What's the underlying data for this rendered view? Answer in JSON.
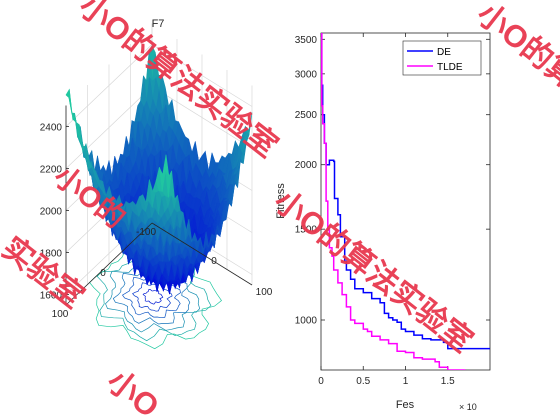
{
  "colors": {
    "de": "#0000ff",
    "tlde": "#ff00ff",
    "surface_high": "#20c8a0",
    "surface_low": "#0000dd",
    "contour": "#1030c0",
    "watermark": "#e8384f",
    "axis": "#262626"
  },
  "watermark": {
    "text1": "小O的算法实验室",
    "text2": "小O的算",
    "text3": "小O的算法实验室",
    "text4": "实验室",
    "text5": "小O的",
    "text6": "小O"
  },
  "chart_data": [
    {
      "type": "surface",
      "title": "F7",
      "xlabel": "",
      "ylabel": "",
      "zlabel": "",
      "xlim": [
        -100,
        100
      ],
      "ylim": [
        -100,
        100
      ],
      "zlim": [
        1550,
        2500
      ],
      "x_ticks": [
        0,
        100
      ],
      "y_ticks": [
        -100,
        0,
        100
      ],
      "z_ticks": [
        1600,
        1800,
        2000,
        2200,
        2400
      ],
      "contours_on_floor": true,
      "colormap": "winter"
    },
    {
      "type": "line",
      "title": "",
      "xlabel": "Fes",
      "ylabel": "Fitness",
      "x_exponent_label": "× 10",
      "y_scale": "log",
      "xlim": [
        0,
        2
      ],
      "ylim": [
        800,
        3600
      ],
      "x_ticks": [
        "0",
        "0.5",
        "1",
        "1.5"
      ],
      "y_ticks": [
        "1000",
        "1500",
        "2000",
        "2500",
        "3000",
        "3500"
      ],
      "legend_position": "top-right",
      "series": [
        {
          "name": "DE",
          "x": [
            0,
            0.01,
            0.02,
            0.04,
            0.06,
            0.08,
            0.1,
            0.13,
            0.15,
            0.16,
            0.2,
            0.23,
            0.28,
            0.3,
            0.35,
            0.4,
            0.45,
            0.5,
            0.6,
            0.7,
            0.75,
            0.8,
            0.85,
            0.9,
            0.95,
            1.0,
            1.1,
            1.2,
            1.3,
            1.45,
            1.5,
            2.0
          ],
          "y": [
            3600,
            2850,
            2500,
            2200,
            2000,
            2000,
            2040,
            2040,
            2030,
            1720,
            1600,
            1450,
            1300,
            1250,
            1200,
            1150,
            1150,
            1130,
            1100,
            1080,
            1030,
            1010,
            1000,
            990,
            960,
            950,
            935,
            920,
            915,
            905,
            880,
            880
          ]
        },
        {
          "name": "TLDE",
          "x": [
            0,
            0.01,
            0.02,
            0.04,
            0.06,
            0.08,
            0.1,
            0.13,
            0.15,
            0.2,
            0.25,
            0.3,
            0.35,
            0.4,
            0.5,
            0.55,
            0.6,
            0.7,
            0.8,
            0.9,
            1.0,
            1.1,
            1.2,
            1.3,
            1.35,
            1.4,
            1.45,
            1.5,
            1.6,
            1.7,
            1.8,
            2.0
          ],
          "y": [
            3600,
            2600,
            2400,
            2200,
            1700,
            1500,
            1380,
            1330,
            1250,
            1180,
            1120,
            1060,
            1000,
            985,
            960,
            950,
            930,
            915,
            900,
            870,
            865,
            845,
            840,
            840,
            830,
            810,
            810,
            800,
            800,
            790,
            785,
            780
          ]
        }
      ]
    }
  ]
}
